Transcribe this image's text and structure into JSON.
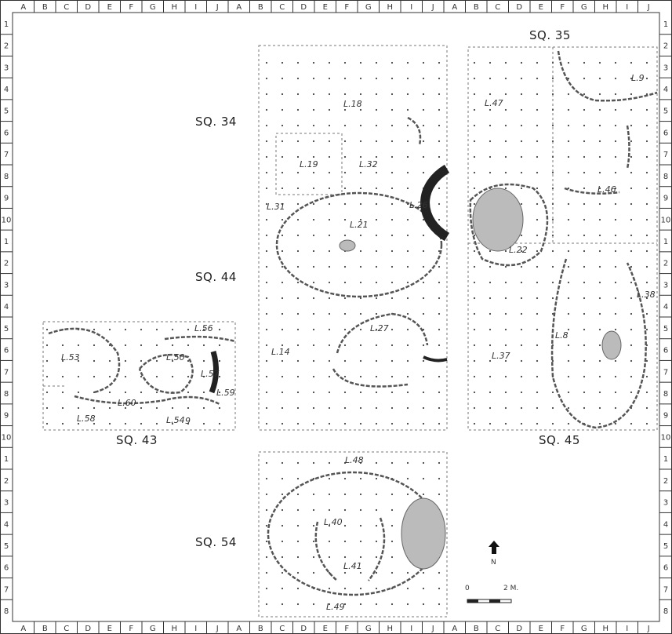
{
  "plan": {
    "squares": [
      {
        "id": "sq35",
        "label": "SQ. 35"
      },
      {
        "id": "sq34",
        "label": "SQ. 34"
      },
      {
        "id": "sq44",
        "label": "SQ. 44"
      },
      {
        "id": "sq43",
        "label": "SQ. 43"
      },
      {
        "id": "sq45",
        "label": "SQ.  45"
      },
      {
        "id": "sq54",
        "label": "SQ. 54"
      }
    ],
    "loci": [
      "L.9",
      "L.47",
      "L.18",
      "L.19",
      "L.32",
      "L.31",
      "L.21",
      "L.26",
      "L.46",
      "L.22",
      "L.38",
      "L.8",
      "L.37",
      "L.14",
      "L.27",
      "L.56",
      "L.53",
      "L.50",
      "L.57",
      "L.59",
      "L.58",
      "L.60",
      "L.54",
      "L.48",
      "L.40",
      "L.41",
      "L.49"
    ],
    "extra_marks": [
      "9"
    ],
    "north_label": "N",
    "scale": {
      "zero": "0",
      "end": "2 M."
    }
  },
  "grid": {
    "letters": [
      "A",
      "B",
      "C",
      "D",
      "E",
      "F",
      "G",
      "H",
      "I",
      "J"
    ],
    "rows_top": [
      "1",
      "2",
      "3",
      "4",
      "5",
      "6",
      "7",
      "8",
      "9",
      "10"
    ],
    "rows_bottom": [
      "1",
      "2",
      "3",
      "4",
      "5",
      "6",
      "7",
      "8"
    ]
  }
}
